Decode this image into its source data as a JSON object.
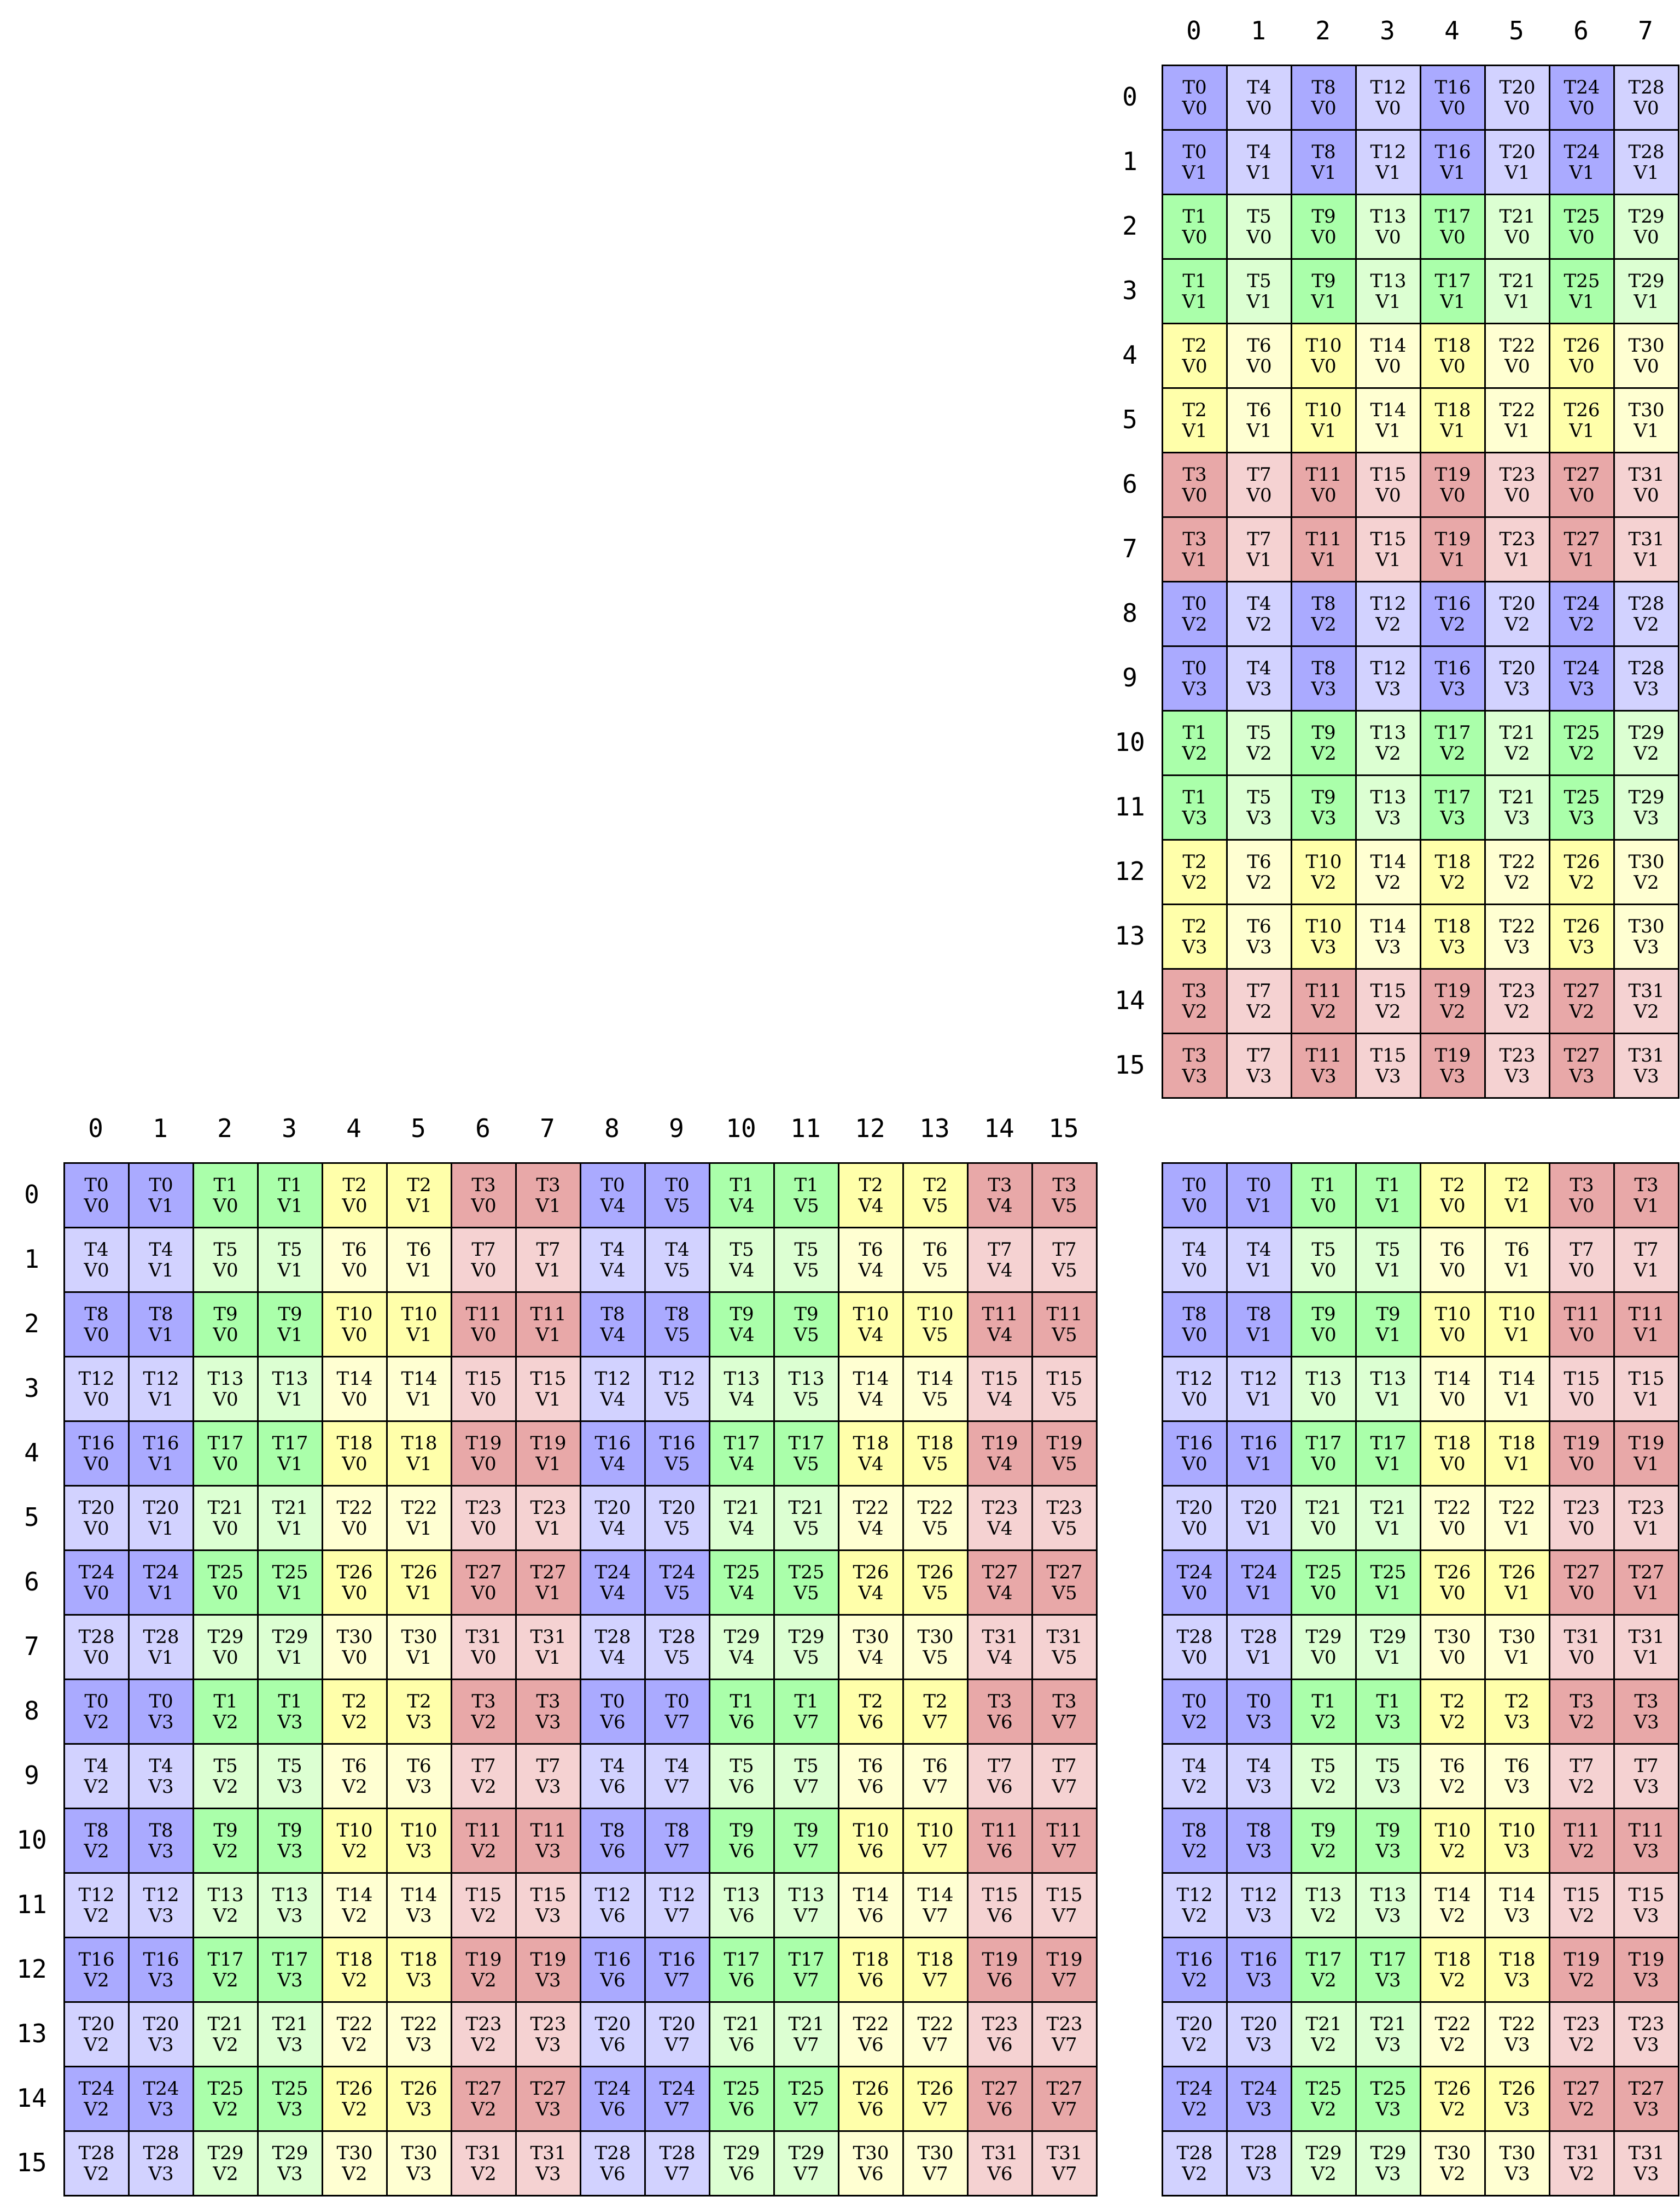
{
  "colors": {
    "dark": [
      "#aaaaff",
      "#aaffaa",
      "#ffffaa",
      "#e8a8a8"
    ],
    "light": [
      "#d2d2ff",
      "#dcffd2",
      "#ffffd2",
      "#f5d2d2"
    ]
  },
  "grids": [
    {
      "id": "top-right",
      "rows": 16,
      "cols": 8,
      "row_labels": [
        "0",
        "1",
        "2",
        "3",
        "4",
        "5",
        "6",
        "7",
        "8",
        "9",
        "10",
        "11",
        "12",
        "13",
        "14",
        "15"
      ],
      "col_labels": [
        "0",
        "1",
        "2",
        "3",
        "4",
        "5",
        "6",
        "7"
      ],
      "cells": [
        [
          "T0 V0",
          "T4 V0",
          "T8 V0",
          "T12 V0",
          "T16 V0",
          "T20 V0",
          "T24 V0",
          "T28 V0"
        ],
        [
          "T0 V1",
          "T4 V1",
          "T8 V1",
          "T12 V1",
          "T16 V1",
          "T20 V1",
          "T24 V1",
          "T28 V1"
        ],
        [
          "T1 V0",
          "T5 V0",
          "T9 V0",
          "T13 V0",
          "T17 V0",
          "T21 V0",
          "T25 V0",
          "T29 V0"
        ],
        [
          "T1 V1",
          "T5 V1",
          "T9 V1",
          "T13 V1",
          "T17 V1",
          "T21 V1",
          "T25 V1",
          "T29 V1"
        ],
        [
          "T2 V0",
          "T6 V0",
          "T10 V0",
          "T14 V0",
          "T18 V0",
          "T22 V0",
          "T26 V0",
          "T30 V0"
        ],
        [
          "T2 V1",
          "T6 V1",
          "T10 V1",
          "T14 V1",
          "T18 V1",
          "T22 V1",
          "T26 V1",
          "T30 V1"
        ],
        [
          "T3 V0",
          "T7 V0",
          "T11 V0",
          "T15 V0",
          "T19 V0",
          "T23 V0",
          "T27 V0",
          "T31 V0"
        ],
        [
          "T3 V1",
          "T7 V1",
          "T11 V1",
          "T15 V1",
          "T19 V1",
          "T23 V1",
          "T27 V1",
          "T31 V1"
        ],
        [
          "T0 V2",
          "T4 V2",
          "T8 V2",
          "T12 V2",
          "T16 V2",
          "T20 V2",
          "T24 V2",
          "T28 V2"
        ],
        [
          "T0 V3",
          "T4 V3",
          "T8 V3",
          "T12 V3",
          "T16 V3",
          "T20 V3",
          "T24 V3",
          "T28 V3"
        ],
        [
          "T1 V2",
          "T5 V2",
          "T9 V2",
          "T13 V2",
          "T17 V2",
          "T21 V2",
          "T25 V2",
          "T29 V2"
        ],
        [
          "T1 V3",
          "T5 V3",
          "T9 V3",
          "T13 V3",
          "T17 V3",
          "T21 V3",
          "T25 V3",
          "T29 V3"
        ],
        [
          "T2 V2",
          "T6 V2",
          "T10 V2",
          "T14 V2",
          "T18 V2",
          "T22 V2",
          "T26 V2",
          "T30 V2"
        ],
        [
          "T2 V3",
          "T6 V3",
          "T10 V3",
          "T14 V3",
          "T18 V3",
          "T22 V3",
          "T26 V3",
          "T30 V3"
        ],
        [
          "T3 V2",
          "T7 V2",
          "T11 V2",
          "T15 V2",
          "T19 V2",
          "T23 V2",
          "T27 V2",
          "T31 V2"
        ],
        [
          "T3 V3",
          "T7 V3",
          "T11 V3",
          "T15 V3",
          "T19 V3",
          "T23 V3",
          "T27 V3",
          "T31 V3"
        ]
      ]
    },
    {
      "id": "bottom-left",
      "rows": 16,
      "cols": 16,
      "row_labels": [
        "0",
        "1",
        "2",
        "3",
        "4",
        "5",
        "6",
        "7",
        "8",
        "9",
        "10",
        "11",
        "12",
        "13",
        "14",
        "15"
      ],
      "col_labels": [
        "0",
        "1",
        "2",
        "3",
        "4",
        "5",
        "6",
        "7",
        "8",
        "9",
        "10",
        "11",
        "12",
        "13",
        "14",
        "15"
      ],
      "cells": [
        [
          "T0 V0",
          "T0 V1",
          "T1 V0",
          "T1 V1",
          "T2 V0",
          "T2 V1",
          "T3 V0",
          "T3 V1",
          "T0 V4",
          "T0 V5",
          "T1 V4",
          "T1 V5",
          "T2 V4",
          "T2 V5",
          "T3 V4",
          "T3 V5"
        ],
        [
          "T4 V0",
          "T4 V1",
          "T5 V0",
          "T5 V1",
          "T6 V0",
          "T6 V1",
          "T7 V0",
          "T7 V1",
          "T4 V4",
          "T4 V5",
          "T5 V4",
          "T5 V5",
          "T6 V4",
          "T6 V5",
          "T7 V4",
          "T7 V5"
        ],
        [
          "T8 V0",
          "T8 V1",
          "T9 V0",
          "T9 V1",
          "T10 V0",
          "T10 V1",
          "T11 V0",
          "T11 V1",
          "T8 V4",
          "T8 V5",
          "T9 V4",
          "T9 V5",
          "T10 V4",
          "T10 V5",
          "T11 V4",
          "T11 V5"
        ],
        [
          "T12 V0",
          "T12 V1",
          "T13 V0",
          "T13 V1",
          "T14 V0",
          "T14 V1",
          "T15 V0",
          "T15 V1",
          "T12 V4",
          "T12 V5",
          "T13 V4",
          "T13 V5",
          "T14 V4",
          "T14 V5",
          "T15 V4",
          "T15 V5"
        ],
        [
          "T16 V0",
          "T16 V1",
          "T17 V0",
          "T17 V1",
          "T18 V0",
          "T18 V1",
          "T19 V0",
          "T19 V1",
          "T16 V4",
          "T16 V5",
          "T17 V4",
          "T17 V5",
          "T18 V4",
          "T18 V5",
          "T19 V4",
          "T19 V5"
        ],
        [
          "T20 V0",
          "T20 V1",
          "T21 V0",
          "T21 V1",
          "T22 V0",
          "T22 V1",
          "T23 V0",
          "T23 V1",
          "T20 V4",
          "T20 V5",
          "T21 V4",
          "T21 V5",
          "T22 V4",
          "T22 V5",
          "T23 V4",
          "T23 V5"
        ],
        [
          "T24 V0",
          "T24 V1",
          "T25 V0",
          "T25 V1",
          "T26 V0",
          "T26 V1",
          "T27 V0",
          "T27 V1",
          "T24 V4",
          "T24 V5",
          "T25 V4",
          "T25 V5",
          "T26 V4",
          "T26 V5",
          "T27 V4",
          "T27 V5"
        ],
        [
          "T28 V0",
          "T28 V1",
          "T29 V0",
          "T29 V1",
          "T30 V0",
          "T30 V1",
          "T31 V0",
          "T31 V1",
          "T28 V4",
          "T28 V5",
          "T29 V4",
          "T29 V5",
          "T30 V4",
          "T30 V5",
          "T31 V4",
          "T31 V5"
        ],
        [
          "T0 V2",
          "T0 V3",
          "T1 V2",
          "T1 V3",
          "T2 V2",
          "T2 V3",
          "T3 V2",
          "T3 V3",
          "T0 V6",
          "T0 V7",
          "T1 V6",
          "T1 V7",
          "T2 V6",
          "T2 V7",
          "T3 V6",
          "T3 V7"
        ],
        [
          "T4 V2",
          "T4 V3",
          "T5 V2",
          "T5 V3",
          "T6 V2",
          "T6 V3",
          "T7 V2",
          "T7 V3",
          "T4 V6",
          "T4 V7",
          "T5 V6",
          "T5 V7",
          "T6 V6",
          "T6 V7",
          "T7 V6",
          "T7 V7"
        ],
        [
          "T8 V2",
          "T8 V3",
          "T9 V2",
          "T9 V3",
          "T10 V2",
          "T10 V3",
          "T11 V2",
          "T11 V3",
          "T8 V6",
          "T8 V7",
          "T9 V6",
          "T9 V7",
          "T10 V6",
          "T10 V7",
          "T11 V6",
          "T11 V7"
        ],
        [
          "T12 V2",
          "T12 V3",
          "T13 V2",
          "T13 V3",
          "T14 V2",
          "T14 V3",
          "T15 V2",
          "T15 V3",
          "T12 V6",
          "T12 V7",
          "T13 V6",
          "T13 V7",
          "T14 V6",
          "T14 V7",
          "T15 V6",
          "T15 V7"
        ],
        [
          "T16 V2",
          "T16 V3",
          "T17 V2",
          "T17 V3",
          "T18 V2",
          "T18 V3",
          "T19 V2",
          "T19 V3",
          "T16 V6",
          "T16 V7",
          "T17 V6",
          "T17 V7",
          "T18 V6",
          "T18 V7",
          "T19 V6",
          "T19 V7"
        ],
        [
          "T20 V2",
          "T20 V3",
          "T21 V2",
          "T21 V3",
          "T22 V2",
          "T22 V3",
          "T23 V2",
          "T23 V3",
          "T20 V6",
          "T20 V7",
          "T21 V6",
          "T21 V7",
          "T22 V6",
          "T22 V7",
          "T23 V6",
          "T23 V7"
        ],
        [
          "T24 V2",
          "T24 V3",
          "T25 V2",
          "T25 V3",
          "T26 V2",
          "T26 V3",
          "T27 V2",
          "T27 V3",
          "T24 V6",
          "T24 V7",
          "T25 V6",
          "T25 V7",
          "T26 V6",
          "T26 V7",
          "T27 V6",
          "T27 V7"
        ],
        [
          "T28 V2",
          "T28 V3",
          "T29 V2",
          "T29 V3",
          "T30 V2",
          "T30 V3",
          "T31 V2",
          "T31 V3",
          "T28 V6",
          "T28 V7",
          "T29 V6",
          "T29 V7",
          "T30 V6",
          "T30 V7",
          "T31 V6",
          "T31 V7"
        ]
      ]
    },
    {
      "id": "bottom-right",
      "rows": 16,
      "cols": 8,
      "row_labels": [],
      "col_labels": [],
      "cells": [
        [
          "T0 V0",
          "T0 V1",
          "T1 V0",
          "T1 V1",
          "T2 V0",
          "T2 V1",
          "T3 V0",
          "T3 V1"
        ],
        [
          "T4 V0",
          "T4 V1",
          "T5 V0",
          "T5 V1",
          "T6 V0",
          "T6 V1",
          "T7 V0",
          "T7 V1"
        ],
        [
          "T8 V0",
          "T8 V1",
          "T9 V0",
          "T9 V1",
          "T10 V0",
          "T10 V1",
          "T11 V0",
          "T11 V1"
        ],
        [
          "T12 V0",
          "T12 V1",
          "T13 V0",
          "T13 V1",
          "T14 V0",
          "T14 V1",
          "T15 V0",
          "T15 V1"
        ],
        [
          "T16 V0",
          "T16 V1",
          "T17 V0",
          "T17 V1",
          "T18 V0",
          "T18 V1",
          "T19 V0",
          "T19 V1"
        ],
        [
          "T20 V0",
          "T20 V1",
          "T21 V0",
          "T21 V1",
          "T22 V0",
          "T22 V1",
          "T23 V0",
          "T23 V1"
        ],
        [
          "T24 V0",
          "T24 V1",
          "T25 V0",
          "T25 V1",
          "T26 V0",
          "T26 V1",
          "T27 V0",
          "T27 V1"
        ],
        [
          "T28 V0",
          "T28 V1",
          "T29 V0",
          "T29 V1",
          "T30 V0",
          "T30 V1",
          "T31 V0",
          "T31 V1"
        ],
        [
          "T0 V2",
          "T0 V3",
          "T1 V2",
          "T1 V3",
          "T2 V2",
          "T2 V3",
          "T3 V2",
          "T3 V3"
        ],
        [
          "T4 V2",
          "T4 V3",
          "T5 V2",
          "T5 V3",
          "T6 V2",
          "T6 V3",
          "T7 V2",
          "T7 V3"
        ],
        [
          "T8 V2",
          "T8 V3",
          "T9 V2",
          "T9 V3",
          "T10 V2",
          "T10 V3",
          "T11 V2",
          "T11 V3"
        ],
        [
          "T12 V2",
          "T12 V3",
          "T13 V2",
          "T13 V3",
          "T14 V2",
          "T14 V3",
          "T15 V2",
          "T15 V3"
        ],
        [
          "T16 V2",
          "T16 V3",
          "T17 V2",
          "T17 V3",
          "T18 V2",
          "T18 V3",
          "T19 V2",
          "T19 V3"
        ],
        [
          "T20 V2",
          "T20 V3",
          "T21 V2",
          "T21 V3",
          "T22 V2",
          "T22 V3",
          "T23 V2",
          "T23 V3"
        ],
        [
          "T24 V2",
          "T24 V3",
          "T25 V2",
          "T25 V3",
          "T26 V2",
          "T26 V3",
          "T27 V2",
          "T27 V3"
        ],
        [
          "T28 V2",
          "T28 V3",
          "T29 V2",
          "T29 V3",
          "T30 V2",
          "T30 V3",
          "T31 V2",
          "T31 V3"
        ]
      ]
    }
  ]
}
